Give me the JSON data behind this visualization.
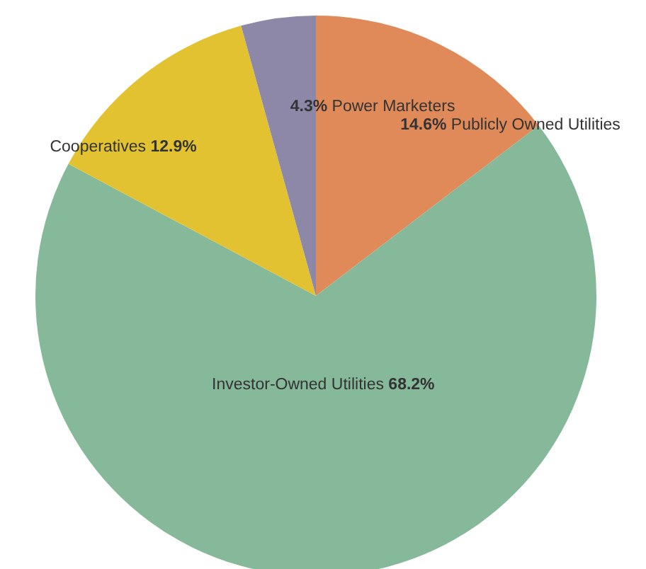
{
  "chart_data": {
    "type": "pie",
    "categories": [
      "Publicly Owned Utilities",
      "Investor-Owned Utilities",
      "Cooperatives",
      "Power Marketers"
    ],
    "values": [
      14.6,
      68.2,
      12.9,
      4.3
    ],
    "colors": [
      "#e08a5a",
      "#86b89a",
      "#e3c232",
      "#8e88a8"
    ],
    "value_labels": [
      "14.6%",
      "68.2%",
      "12.9%",
      "4.3%"
    ]
  }
}
